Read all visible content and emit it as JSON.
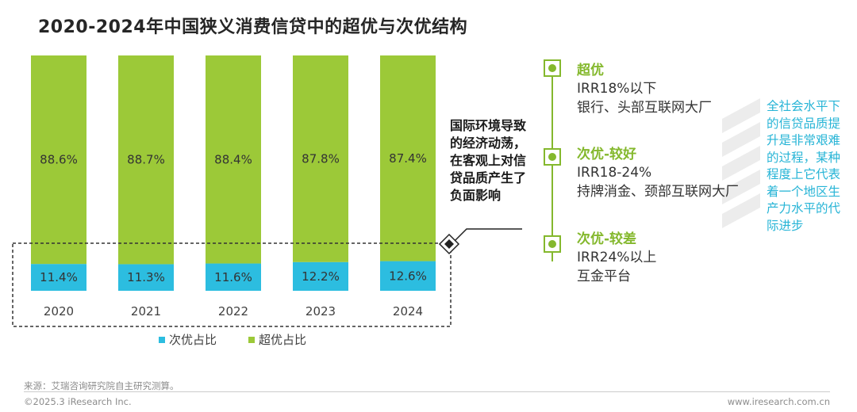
{
  "title": "2020-2024年中国狭义消费信贷中的超优与次优结构",
  "chart_data": {
    "type": "bar",
    "stacked": true,
    "categories": [
      "2020",
      "2021",
      "2022",
      "2023",
      "2024"
    ],
    "series": [
      {
        "name": "次优占比",
        "values": [
          11.4,
          11.3,
          11.6,
          12.2,
          12.6
        ],
        "labels": [
          "11.4%",
          "11.3%",
          "11.6%",
          "12.2%",
          "12.6%"
        ],
        "color": "#2cbde0"
      },
      {
        "name": "超优占比",
        "values": [
          88.6,
          88.7,
          88.4,
          87.8,
          87.4
        ],
        "labels": [
          "88.6%",
          "88.7%",
          "88.4%",
          "87.8%",
          "87.4%"
        ],
        "color": "#9cc938"
      }
    ],
    "ylim": [
      0,
      100
    ],
    "legend_position": "bottom"
  },
  "annotation": "国际环境导致的经济动荡，在客观上对信贷品质产生了负面影响",
  "tiers": [
    {
      "name": "超优",
      "lines": [
        "IRR18%以下",
        "银行、头部互联网大厂"
      ]
    },
    {
      "name": "次优-较好",
      "lines": [
        "IRR18-24%",
        "持牌消金、颈部互联网大厂"
      ]
    },
    {
      "name": "次优-较差",
      "lines": [
        "IRR24%以上",
        "互金平台"
      ]
    }
  ],
  "side_note": "全社会水平下的信贷品质提升是非常艰难的过程，某种程度上它代表着一个地区生产力水平的代际进步",
  "footer": {
    "source": "来源：艾瑞咨询研究院自主研究测算。",
    "copyright": "©2025.3 iResearch Inc.",
    "website": "www.iresearch.com.cn"
  },
  "colors": {
    "green": "#9cc938",
    "cyan": "#2cbde0",
    "tier_green": "#84b82d",
    "note_cyan": "#26b4d6"
  }
}
